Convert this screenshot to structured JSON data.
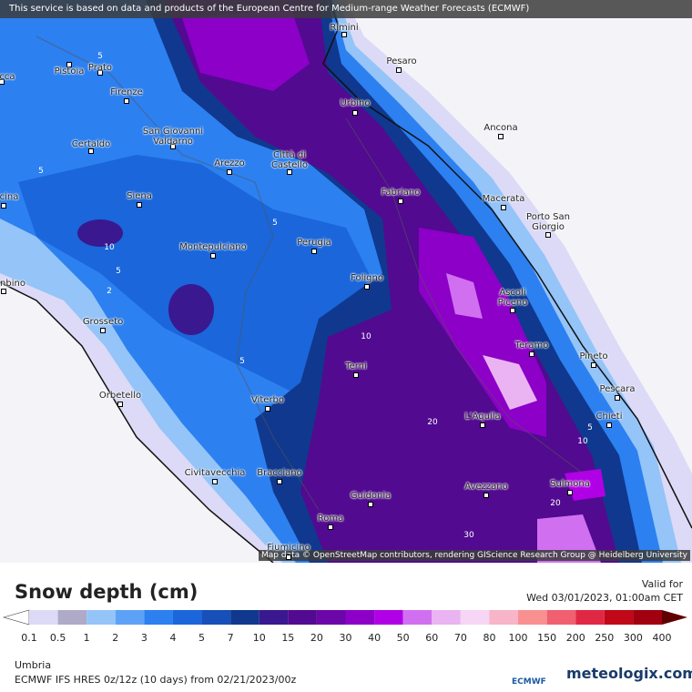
{
  "notice": "This service is based on data and products of the European Centre for Medium-range Weather Forecasts (ECMWF)",
  "attribution": "Map data © OpenStreetMap contributors, rendering GIScience Research Group @ Heidelberg University",
  "cities": [
    "Rimini",
    "Pesaro",
    "Pistoia",
    "Prato",
    "cca",
    "Firenze",
    "Urbino",
    "Ancona",
    "Certaldo",
    "San Giovanni Valdarno",
    "Arezzo",
    "Città di Castello",
    "Fabriano",
    "Macerata",
    "Siena",
    "cina",
    "Porto San Giorgio",
    "Perugia",
    "Montepulciano",
    "Foligno",
    "nbino",
    "Ascoli Piceno",
    "Grosseto",
    "Teramo",
    "Pineto",
    "Terni",
    "Orbetello",
    "Pescara",
    "Viterbo",
    "L'Aquila",
    "Chieti",
    "Civitavecchia",
    "Bracciano",
    "Sulmona",
    "Avezzano",
    "Guidonia",
    "Roma",
    "Fiumicino"
  ],
  "contour_labels": [
    5,
    5,
    10,
    5,
    2,
    5,
    10,
    5,
    20,
    5,
    10,
    20,
    30
  ],
  "legend": {
    "title": "Snow depth (cm)",
    "valid_label": "Valid for",
    "valid_time": "Wed 03/01/2023, 01:00am CET",
    "boundaries": [
      0.1,
      0.5,
      1,
      2,
      3,
      4,
      5,
      7,
      10,
      15,
      20,
      30,
      40,
      50,
      60,
      70,
      80,
      100,
      150,
      200,
      250,
      300,
      400
    ],
    "colors": [
      "#ffffff",
      "#dcdaf6",
      "#aeaac8",
      "#94c4f8",
      "#5ea2f8",
      "#2c80f0",
      "#1a66da",
      "#1650b8",
      "#10388e",
      "#3a1890",
      "#520a90",
      "#6c06a8",
      "#8c00c8",
      "#b000e6",
      "#d070f0",
      "#eab4f2",
      "#f6d6f4",
      "#f8b4c8",
      "#f89090",
      "#f06070",
      "#e02844",
      "#c00818",
      "#a00010",
      "#600000"
    ]
  },
  "footer": {
    "region": "Umbria",
    "model": "ECMWF IFS HRES 0z/12z (10 days) from 02/21/2023/00z",
    "logo_ecmwf": "ECMWF",
    "brand": "meteologix.com"
  }
}
